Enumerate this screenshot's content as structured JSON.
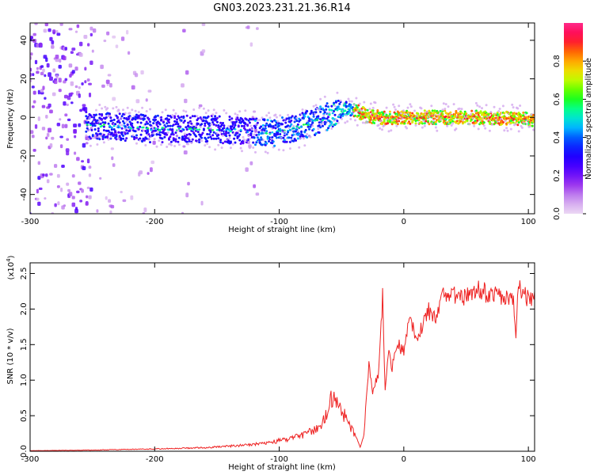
{
  "title": "GN03.2023.231.21.36.R14",
  "chart_data": [
    {
      "type": "heatmap",
      "xlabel": "Height of straight line (km)",
      "ylabel": "Frequency (Hz)",
      "xlim": [
        -300,
        105
      ],
      "ylim": [
        -50,
        49
      ],
      "xticks": [
        -300,
        -200,
        -100,
        0,
        100
      ],
      "xtick_labels": [
        "-300",
        "-200",
        "-100",
        "0",
        "100"
      ],
      "yticks": [
        -40,
        -20,
        0,
        20,
        40
      ],
      "ytick_labels": [
        "-40",
        "-20",
        "0",
        "20",
        "40"
      ],
      "colorbar": {
        "label": "Normalized spectral amplitude",
        "range": [
          0,
          1
        ],
        "ticks": [
          0.0,
          0.2,
          0.4,
          0.6,
          0.8
        ],
        "tick_labels": [
          "0.0",
          "0.2",
          "0.4",
          "0.6",
          "0.8"
        ],
        "colors": [
          "#ecd8f4",
          "#cc99ee",
          "#9a33ee",
          "#5500ff",
          "#1a00ff",
          "#0044ff",
          "#00c8ff",
          "#00ffa0",
          "#22ff00",
          "#b8ff00",
          "#ffd000",
          "#ff6a00",
          "#ff0040",
          "#ff2a8a"
        ]
      },
      "ridge": {
        "x": [
          -255,
          -225,
          -200,
          -160,
          -130,
          -105,
          -90,
          -70,
          -55,
          -45,
          -40,
          -30,
          -20,
          0,
          20,
          60,
          100
        ],
        "freq": [
          -4,
          -5,
          -6,
          -6,
          -7,
          -8,
          -6,
          -2,
          2,
          5,
          4,
          1,
          0,
          0,
          0,
          0,
          -1
        ]
      },
      "grid": false
    },
    {
      "type": "line",
      "xlabel": "Height of straight line (km)",
      "ylabel": "SNR (10 * v/v)",
      "yscale_label": "(x10",
      "yscale_exp": "4",
      "yscale_close": ")",
      "xlim": [
        -300,
        105
      ],
      "ylim": [
        0,
        2.65
      ],
      "xticks": [
        -300,
        -200,
        -100,
        0,
        100
      ],
      "xtick_labels": [
        "-300",
        "-200",
        "-100",
        "0",
        "100"
      ],
      "yticks": [
        0.0,
        0.5,
        1.0,
        1.5,
        2.0,
        2.5
      ],
      "ytick_labels": [
        "0.0",
        "0.5",
        "1.0",
        "1.5",
        "2.0",
        "2.5"
      ],
      "series": [
        {
          "color": "#ee2222",
          "x": [
            -300,
            -250,
            -200,
            -160,
            -130,
            -110,
            -100,
            -90,
            -80,
            -70,
            -62,
            -56,
            -50,
            -45,
            -40,
            -35,
            -32,
            -30,
            -28,
            -25,
            -20,
            -17,
            -15,
            -12,
            -10,
            -5,
            0,
            5,
            10,
            15,
            20,
            25,
            30,
            40,
            50,
            60,
            70,
            80,
            88,
            90,
            92,
            95,
            100,
            105
          ],
          "y": [
            0.01,
            0.02,
            0.04,
            0.06,
            0.1,
            0.14,
            0.18,
            0.22,
            0.28,
            0.38,
            0.6,
            1.05,
            0.7,
            0.5,
            0.3,
            0.06,
            0.25,
            0.8,
            1.3,
            0.9,
            1.2,
            2.3,
            0.9,
            1.5,
            1.2,
            1.6,
            1.5,
            2.0,
            1.7,
            1.9,
            2.1,
            2.0,
            2.3,
            2.35,
            2.3,
            2.4,
            2.35,
            2.3,
            2.25,
            1.65,
            2.5,
            2.35,
            2.3,
            2.25
          ]
        }
      ],
      "grid": false
    }
  ]
}
